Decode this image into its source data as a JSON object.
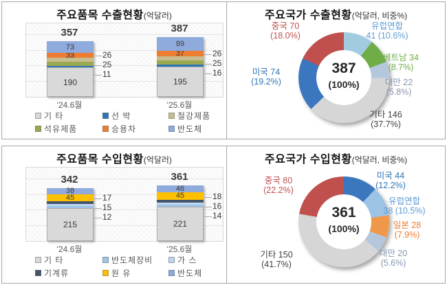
{
  "chart_data": [
    {
      "type": "bar",
      "stacked": true,
      "title": "주요품목 수출현황",
      "unit": "(억달러)",
      "categories": [
        "'24.6월",
        "'25.6월"
      ],
      "totals": [
        "357",
        "387"
      ],
      "series": [
        {
          "name": "기 타",
          "color": "#d9d9d9",
          "values": [
            190,
            195
          ],
          "label_mode": "inside"
        },
        {
          "name": "선 박",
          "color": "#2e75b6",
          "values": [
            11,
            16
          ],
          "label_mode": "callout"
        },
        {
          "name": "석유제품",
          "color": "#9aa84f",
          "values": [
            25,
            25
          ],
          "label_mode": "callout"
        },
        {
          "name": "철강제품",
          "color": "#c7bd8e",
          "values": [
            26,
            26
          ],
          "label_mode": "callout"
        },
        {
          "name": "승용차",
          "color": "#ed7d31",
          "values": [
            33,
            37
          ],
          "label_mode": "inside"
        },
        {
          "name": "반도체",
          "color": "#8faadc",
          "values": [
            73,
            89
          ],
          "label_mode": "inside"
        }
      ],
      "legend": [
        {
          "label": "기 타",
          "color": "#d9d9d9"
        },
        {
          "label": "선 박",
          "color": "#2e75b6"
        },
        {
          "label": "철강제품",
          "color": "#c7bd8e"
        },
        {
          "label": "석유제품",
          "color": "#9aa84f"
        },
        {
          "label": "승용차",
          "color": "#ed7d31"
        },
        {
          "label": "반도체",
          "color": "#8faadc"
        }
      ]
    },
    {
      "type": "donut",
      "title": "주요국가 수출현황",
      "unit": "(억달러, 비중%)",
      "center_value": "387",
      "center_pct": "(100%)",
      "slices": [
        {
          "name": "유럽연합",
          "value": 41,
          "pct": 10.6,
          "color": "#a3cbe0",
          "label_color": "#5b9bd5",
          "line1": "유럽연합",
          "line2": "41 (10.6%)"
        },
        {
          "name": "베트남",
          "value": 34,
          "pct": 8.7,
          "color": "#70ad47",
          "label_color": "#70ad47",
          "line1": "베트남 34",
          "line2": "(8.7%)"
        },
        {
          "name": "대만",
          "value": 22,
          "pct": 5.8,
          "color": "#b4c7dc",
          "label_color": "#8496b0",
          "line1": "대만 22",
          "line2": "(5.8%)"
        },
        {
          "name": "기타",
          "value": 146,
          "pct": 37.7,
          "color": "#d6d6d6",
          "label_color": "#404040",
          "line1": "기타 146",
          "line2": "(37.7%)"
        },
        {
          "name": "미국",
          "value": 74,
          "pct": 19.2,
          "color": "#3a77be",
          "label_color": "#2e75b6",
          "line1": "미국 74",
          "line2": "(19.2%)"
        },
        {
          "name": "중국",
          "value": 70,
          "pct": 18.0,
          "color": "#c0504d",
          "label_color": "#c0504d",
          "line1": "중국 70",
          "line2": "(18.0%)"
        }
      ]
    },
    {
      "type": "bar",
      "stacked": true,
      "title": "주요품목 수입현황",
      "unit": "(억달러)",
      "categories": [
        "'24.6월",
        "'25.6월"
      ],
      "totals": [
        "342",
        "361"
      ],
      "series": [
        {
          "name": "기 타",
          "color": "#d9d9d9",
          "values": [
            215,
            221
          ],
          "label_mode": "inside"
        },
        {
          "name": "반도체장비",
          "color": "#9dc3e6",
          "values": [
            12,
            14
          ],
          "label_mode": "callout"
        },
        {
          "name": "가 스",
          "color": "#bdd7ee",
          "values": [
            15,
            16
          ],
          "label_mode": "callout"
        },
        {
          "name": "기계류",
          "color": "#44546a",
          "values": [
            17,
            18
          ],
          "label_mode": "callout"
        },
        {
          "name": "원 유",
          "color": "#ffc000",
          "values": [
            45,
            45
          ],
          "label_mode": "inside"
        },
        {
          "name": "반도체",
          "color": "#8faadc",
          "values": [
            38,
            46
          ],
          "label_mode": "inside"
        }
      ],
      "legend": [
        {
          "label": "기 타",
          "color": "#d9d9d9"
        },
        {
          "label": "반도체장비",
          "color": "#9dc3e6"
        },
        {
          "label": "가 스",
          "color": "#bdd7ee"
        },
        {
          "label": "기계류",
          "color": "#44546a"
        },
        {
          "label": "원 유",
          "color": "#ffc000"
        },
        {
          "label": "반도체",
          "color": "#8faadc"
        }
      ]
    },
    {
      "type": "donut",
      "title": "주요국가 수입현황",
      "unit": "(억달러, 비중%)",
      "center_value": "361",
      "center_pct": "(100%)",
      "slices": [
        {
          "name": "미국",
          "value": 44,
          "pct": 12.2,
          "color": "#3a77be",
          "label_color": "#2e75b6",
          "line1": "미국 44",
          "line2": "(12.2%)"
        },
        {
          "name": "유럽연합",
          "value": 38,
          "pct": 10.5,
          "color": "#9dc3e6",
          "label_color": "#5b9bd5",
          "line1": "유럽연합",
          "line2": "38 (10.5%)"
        },
        {
          "name": "일본",
          "value": 28,
          "pct": 7.9,
          "color": "#f0984a",
          "label_color": "#ed7d31",
          "line1": "일본 28",
          "line2": "(7.9%)"
        },
        {
          "name": "대만",
          "value": 20,
          "pct": 5.6,
          "color": "#b4c7dc",
          "label_color": "#8496b0",
          "line1": "대만 20",
          "line2": "(5.6%)"
        },
        {
          "name": "기타",
          "value": 150,
          "pct": 41.7,
          "color": "#d6d6d6",
          "label_color": "#404040",
          "line1": "기타 150",
          "line2": "(41.7%)"
        },
        {
          "name": "중국",
          "value": 80,
          "pct": 22.2,
          "color": "#c0504d",
          "label_color": "#c0504d",
          "line1": "중국 80",
          "line2": "(22.2%)"
        }
      ]
    }
  ]
}
